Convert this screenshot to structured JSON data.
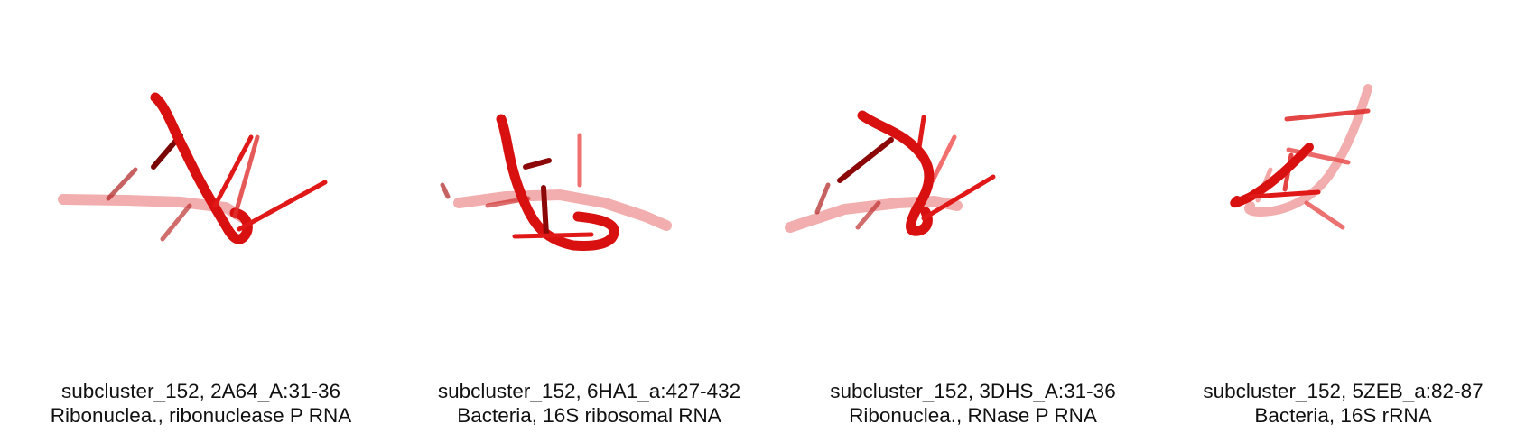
{
  "colors": {
    "backbone": "#e01010",
    "backbone_faded": "#f08888",
    "base": "#e01818",
    "base_dark": "#8c0808",
    "background": "#ffffff"
  },
  "panels": [
    {
      "title": "subcluster_152, 2A64_A:31-36",
      "subtitle": "Ribonuclea., ribonuclease P RNA"
    },
    {
      "title": "subcluster_152, 6HA1_a:427-432",
      "subtitle": "Bacteria, 16S ribosomal RNA"
    },
    {
      "title": "subcluster_152, 3DHS_A:31-36",
      "subtitle": "Ribonuclea., RNase P RNA"
    },
    {
      "title": "subcluster_152, 5ZEB_a:82-87",
      "subtitle": "Bacteria, 16S rRNA"
    }
  ]
}
